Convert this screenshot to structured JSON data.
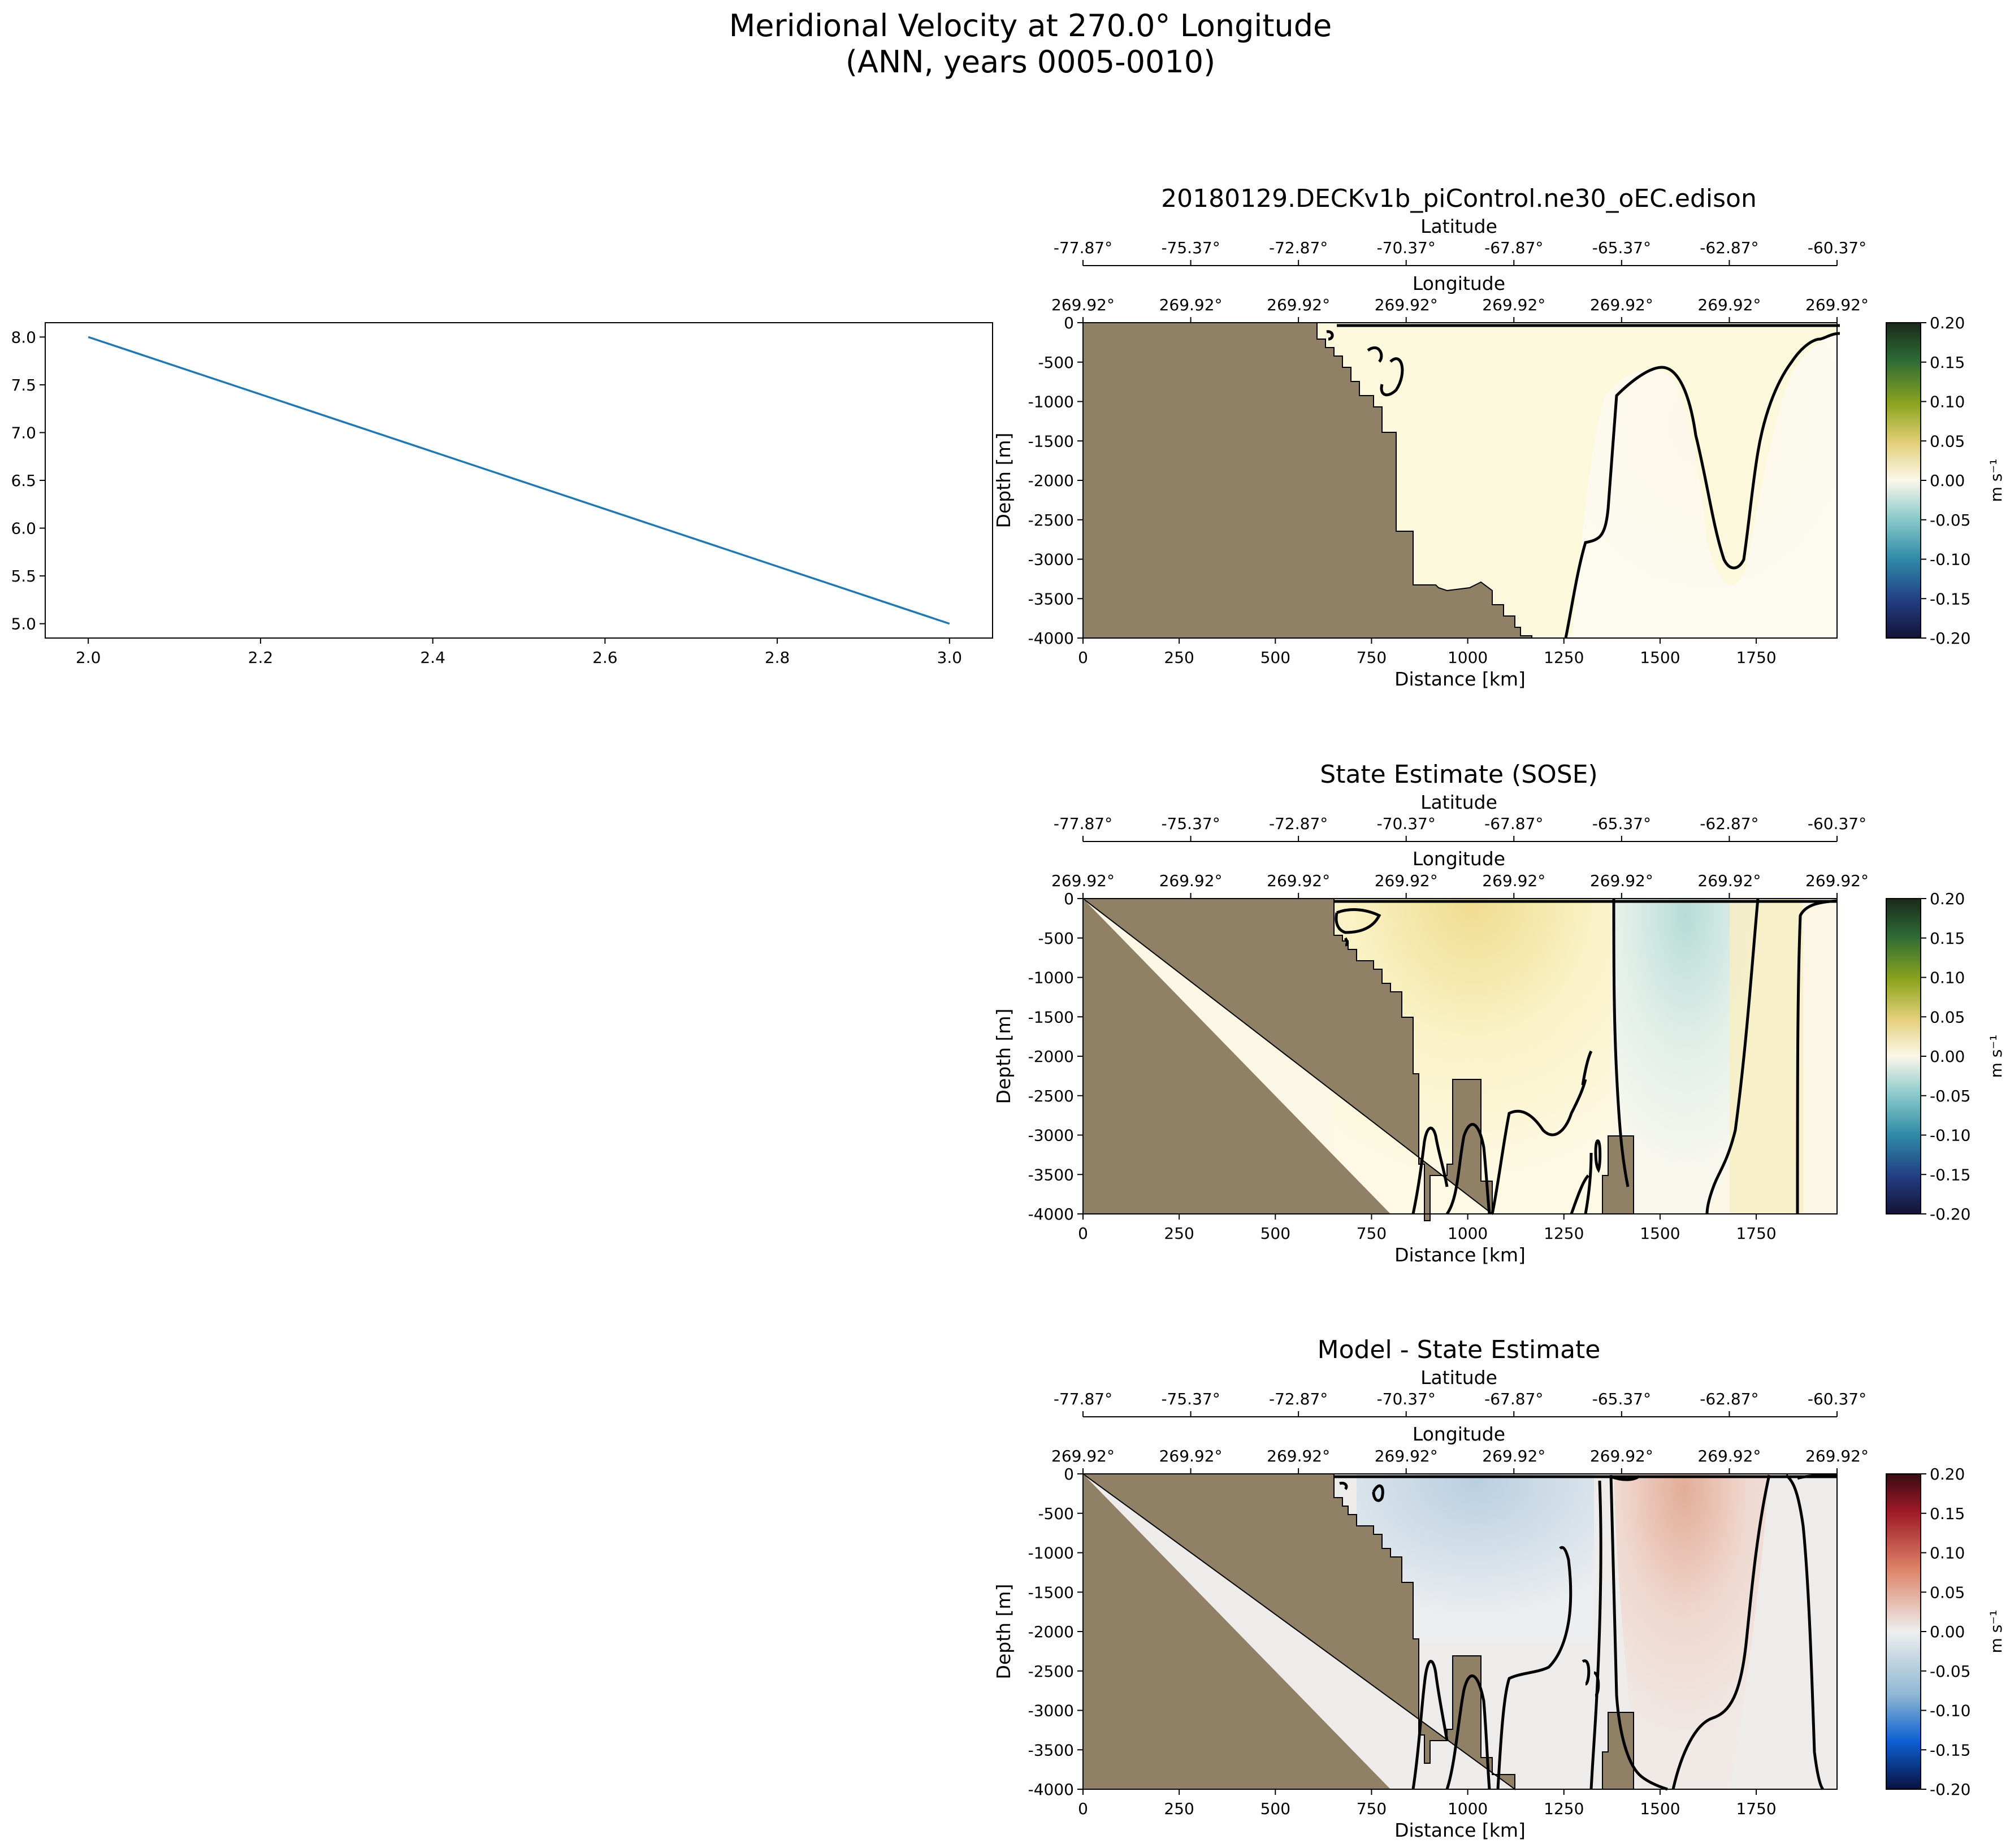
{
  "figure": {
    "title_line1": "Meridional Velocity at 270.0° Longitude",
    "title_line2": "(ANN, years 0005-0010)"
  },
  "line_plot": {
    "x_ticks": [
      "2.0",
      "2.2",
      "2.4",
      "2.6",
      "2.8",
      "3.0"
    ],
    "y_ticks": [
      "5.0",
      "5.5",
      "6.0",
      "6.5",
      "7.0",
      "7.5",
      "8.0"
    ]
  },
  "panels": [
    {
      "title": "20180129.DECKv1b_piControl.ne30_oEC.edison",
      "lat_label": "Latitude",
      "lon_label": "Longitude",
      "xlabel": "Distance [km]",
      "ylabel": "Depth [m]",
      "cbar_label": "m s⁻¹",
      "colormap": "yellow-green diverging"
    },
    {
      "title": "State Estimate (SOSE)",
      "lat_label": "Latitude",
      "lon_label": "Longitude",
      "xlabel": "Distance [km]",
      "ylabel": "Depth [m]",
      "cbar_label": "m s⁻¹",
      "colormap": "yellow-green diverging"
    },
    {
      "title": "Model - State Estimate",
      "lat_label": "Latitude",
      "lon_label": "Longitude",
      "xlabel": "Distance [km]",
      "ylabel": "Depth [m]",
      "cbar_label": "m s⁻¹",
      "colormap": "blue-red diverging"
    }
  ],
  "section_axes": {
    "lat_ticks": [
      "-77.87°",
      "-75.37°",
      "-72.87°",
      "-70.37°",
      "-67.87°",
      "-65.37°",
      "-62.87°",
      "-60.37°"
    ],
    "lon_ticks": [
      "269.92°",
      "269.92°",
      "269.92°",
      "269.92°",
      "269.92°",
      "269.92°",
      "269.92°",
      "269.92°"
    ],
    "x_ticks": [
      "0",
      "250",
      "500",
      "750",
      "1000",
      "1250",
      "1500",
      "1750"
    ],
    "y_ticks": [
      "0",
      "-500",
      "-1000",
      "-1500",
      "-2000",
      "-2500",
      "-3000",
      "-3500",
      "-4000"
    ],
    "cbar_ticks": [
      "0.20",
      "0.15",
      "0.10",
      "0.05",
      "0.00",
      "-0.05",
      "-0.10",
      "-0.15",
      "-0.20"
    ]
  },
  "colors": {
    "line": "#1f77b4",
    "land": "#8f8066",
    "contour": "#000000"
  },
  "chart_data": [
    {
      "type": "line",
      "title": "",
      "xlabel": "",
      "ylabel": "",
      "x": [
        2.0,
        3.0
      ],
      "series": [
        {
          "values": [
            8.0,
            5.0
          ]
        }
      ],
      "xlim": [
        1.95,
        3.05
      ],
      "ylim": [
        4.85,
        8.15
      ],
      "grid": false
    },
    {
      "type": "heatmap",
      "title": "20180129.DECKv1b_piControl.ne30_oEC.edison",
      "xlabel": "Distance [km]",
      "ylabel": "Depth [m]",
      "xlim": [
        0,
        1960
      ],
      "ylim": [
        -4000,
        0
      ],
      "clim": [
        -0.2,
        0.2
      ],
      "colorbar_label": "m s⁻¹",
      "secondary_x_labels": [
        "Latitude",
        "Longitude"
      ]
    },
    {
      "type": "heatmap",
      "title": "State Estimate (SOSE)",
      "xlabel": "Distance [km]",
      "ylabel": "Depth [m]",
      "xlim": [
        0,
        1960
      ],
      "ylim": [
        -4000,
        0
      ],
      "clim": [
        -0.2,
        0.2
      ],
      "colorbar_label": "m s⁻¹",
      "secondary_x_labels": [
        "Latitude",
        "Longitude"
      ]
    },
    {
      "type": "heatmap",
      "title": "Model - State Estimate",
      "xlabel": "Distance [km]",
      "ylabel": "Depth [m]",
      "xlim": [
        0,
        1960
      ],
      "ylim": [
        -4000,
        0
      ],
      "clim": [
        -0.2,
        0.2
      ],
      "colorbar_label": "m s⁻¹",
      "secondary_x_labels": [
        "Latitude",
        "Longitude"
      ]
    }
  ]
}
